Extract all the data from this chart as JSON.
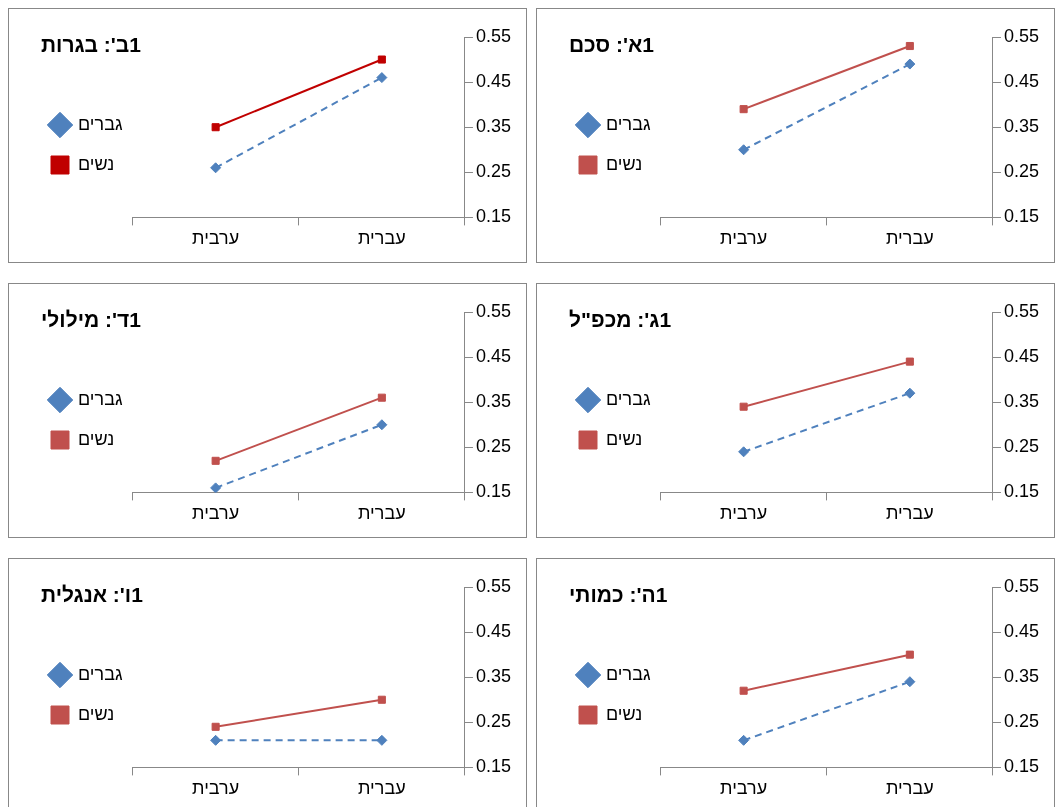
{
  "chart_data": [
    {
      "type": "line",
      "title": "1א': סכם",
      "categories": [
        "ערבית",
        "עברית"
      ],
      "ylim": [
        0.15,
        0.55
      ],
      "yticks": [
        0.15,
        0.25,
        0.35,
        0.45,
        0.55
      ],
      "grid": false,
      "legend": "left",
      "series": [
        {
          "name": "גברים",
          "color": "#4f81bd",
          "values": [
            0.3,
            0.49
          ],
          "marker": "diamond",
          "line_style": "dashed"
        },
        {
          "name": "נשים",
          "color": "#c0504d",
          "values": [
            0.39,
            0.53
          ],
          "marker": "square",
          "line_style": "solid"
        }
      ]
    },
    {
      "type": "line",
      "title": "1ב': בגרות",
      "categories": [
        "ערבית",
        "עברית"
      ],
      "ylim": [
        0.15,
        0.55
      ],
      "yticks": [
        0.15,
        0.25,
        0.35,
        0.45,
        0.55
      ],
      "grid": false,
      "legend": "left",
      "series": [
        {
          "name": "גברים",
          "color": "#4f81bd",
          "values": [
            0.26,
            0.46
          ],
          "marker": "diamond",
          "line_style": "dashed"
        },
        {
          "name": "נשים",
          "color": "#c00000",
          "values": [
            0.35,
            0.5
          ],
          "marker": "square",
          "line_style": "solid"
        }
      ]
    },
    {
      "type": "line",
      "title": "1ג': מכפ\"ל",
      "categories": [
        "ערבית",
        "עברית"
      ],
      "ylim": [
        0.15,
        0.55
      ],
      "yticks": [
        0.15,
        0.25,
        0.35,
        0.45,
        0.55
      ],
      "grid": false,
      "legend": "left",
      "series": [
        {
          "name": "גברים",
          "color": "#4f81bd",
          "values": [
            0.24,
            0.37
          ],
          "marker": "diamond",
          "line_style": "dashed"
        },
        {
          "name": "נשים",
          "color": "#c0504d",
          "values": [
            0.34,
            0.44
          ],
          "marker": "square",
          "line_style": "solid"
        }
      ]
    },
    {
      "type": "line",
      "title": "1ד': מילולי",
      "categories": [
        "ערבית",
        "עברית"
      ],
      "ylim": [
        0.15,
        0.55
      ],
      "yticks": [
        0.15,
        0.25,
        0.35,
        0.45,
        0.55
      ],
      "grid": false,
      "legend": "left",
      "series": [
        {
          "name": "גברים",
          "color": "#4f81bd",
          "values": [
            0.16,
            0.3
          ],
          "marker": "diamond",
          "line_style": "dashed"
        },
        {
          "name": "נשים",
          "color": "#c0504d",
          "values": [
            0.22,
            0.36
          ],
          "marker": "square",
          "line_style": "solid"
        }
      ]
    },
    {
      "type": "line",
      "title": "1ה': כמותי",
      "categories": [
        "ערבית",
        "עברית"
      ],
      "ylim": [
        0.15,
        0.55
      ],
      "yticks": [
        0.15,
        0.25,
        0.35,
        0.45,
        0.55
      ],
      "grid": false,
      "legend": "left",
      "series": [
        {
          "name": "גברים",
          "color": "#4f81bd",
          "values": [
            0.21,
            0.34
          ],
          "marker": "diamond",
          "line_style": "dashed"
        },
        {
          "name": "נשים",
          "color": "#c0504d",
          "values": [
            0.32,
            0.4
          ],
          "marker": "square",
          "line_style": "solid"
        }
      ]
    },
    {
      "type": "line",
      "title": "1ו': אנגלית",
      "categories": [
        "ערבית",
        "עברית"
      ],
      "ylim": [
        0.15,
        0.55
      ],
      "yticks": [
        0.15,
        0.25,
        0.35,
        0.45,
        0.55
      ],
      "grid": false,
      "legend": "left",
      "series": [
        {
          "name": "גברים",
          "color": "#4f81bd",
          "values": [
            0.21,
            0.21
          ],
          "marker": "diamond",
          "line_style": "dashed"
        },
        {
          "name": "נשים",
          "color": "#c0504d",
          "values": [
            0.24,
            0.3
          ],
          "marker": "square",
          "line_style": "solid"
        }
      ]
    }
  ]
}
